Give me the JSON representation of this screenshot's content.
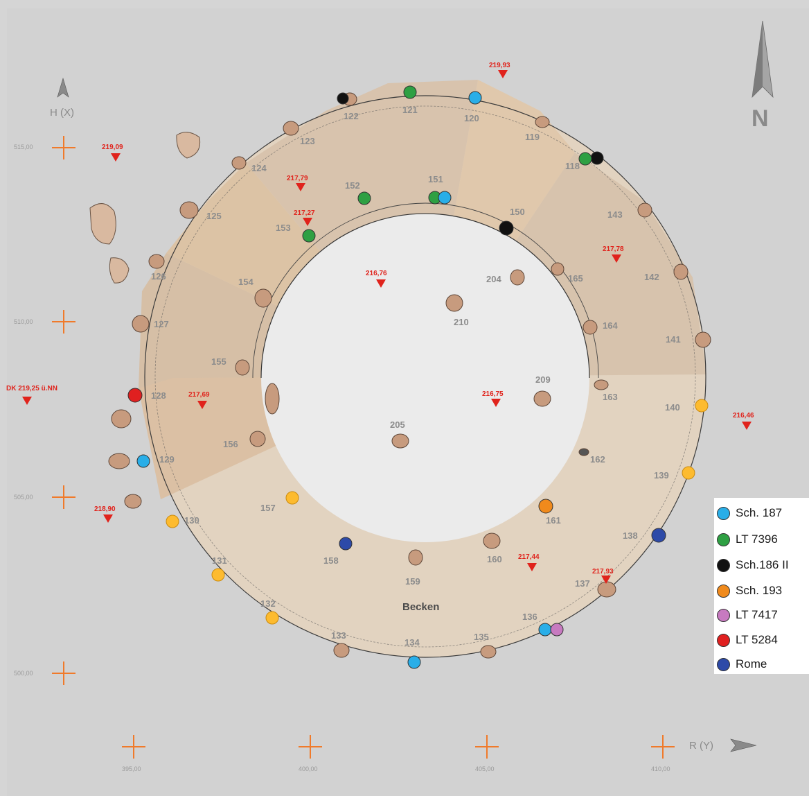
{
  "north": {
    "letter": "N"
  },
  "axis_labels": {
    "hx": "H (X)",
    "ry": "R (Y)"
  },
  "grid_ticks": {
    "y": [
      "515,00",
      "510,00",
      "505,00",
      "500,00"
    ],
    "x": [
      "395,00",
      "400,00",
      "405,00",
      "410,00"
    ]
  },
  "basin_label": "Becken",
  "dk_label": "DK 219,25 ü.NN",
  "elevations": [
    "219,93",
    "219,09",
    "217,79",
    "217,27",
    "216,76",
    "217,78",
    "217,69",
    "216,75",
    "216,46",
    "218,90",
    "217,44",
    "217,93"
  ],
  "stones": [
    "119",
    "120",
    "121",
    "122",
    "123",
    "124",
    "125",
    "126",
    "127",
    "128",
    "129",
    "130",
    "131",
    "132",
    "133",
    "134",
    "135",
    "136",
    "137",
    "138",
    "139",
    "140",
    "141",
    "142",
    "143",
    "118",
    "150",
    "151",
    "152",
    "153",
    "154",
    "155",
    "156",
    "157",
    "158",
    "159",
    "160",
    "161",
    "162",
    "163",
    "164",
    "165",
    "204",
    "205",
    "209",
    "210"
  ],
  "legend": [
    {
      "label": "Sch. 187",
      "color": "#29aee8"
    },
    {
      "label": "LT 7396",
      "color": "#2ea043"
    },
    {
      "label": "Sch.186 II",
      "color": "#111111"
    },
    {
      "label": "Sch. 193",
      "color": "#f08a1c"
    },
    {
      "label": "LT 7417",
      "color": "#c77ac0"
    },
    {
      "label": "LT 5284",
      "color": "#e02020"
    },
    {
      "label": "Rome",
      "color": "#2d4aa8"
    }
  ],
  "colors": {
    "sample_yellow": "#fdbb2f",
    "elevation_marker": "#e0231c",
    "grid_cross": "#f07a2a"
  }
}
